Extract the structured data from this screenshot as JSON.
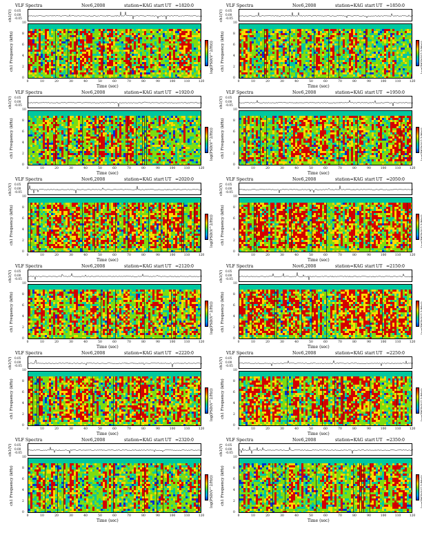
{
  "figure": {
    "title": "VLF Spectra",
    "date": "Nov6,2008",
    "station": "station=KAG",
    "start_label": "start",
    "ut_label": "UT",
    "ch_axis_label": "ch1(V)",
    "freq_axis_label": "ch1 Frequency (kHz)",
    "time_axis_label": "Time (sec)",
    "colorbar_label": "log(PSD(V^2/Hz))",
    "colors": {
      "high": "#d40000",
      "mid_high": "#ffd800",
      "mid": "#7ddc10",
      "mid_low": "#00c8a0",
      "low": "#0030d0",
      "background": "#ffffff"
    }
  },
  "chart_data": [
    {
      "type": "heatmap",
      "panel": 1,
      "start_time": "=1820:0",
      "x_ticks": [
        0,
        10,
        20,
        30,
        40,
        50,
        60,
        70,
        80,
        90,
        100,
        110,
        120
      ],
      "y_ticks": [
        0,
        2,
        4,
        6,
        8,
        10
      ],
      "ch_ticks": [
        "-0.05",
        "0.00",
        "0.05"
      ],
      "xlim": [
        0,
        120
      ],
      "ylim": [
        0,
        10
      ],
      "intensity": 0.45
    },
    {
      "type": "heatmap",
      "panel": 2,
      "start_time": "=1850:0",
      "x_ticks": [
        0,
        10,
        20,
        30,
        40,
        50,
        60,
        70,
        80,
        90,
        100,
        110,
        120
      ],
      "y_ticks": [
        0,
        2,
        4,
        6,
        8,
        10
      ],
      "ch_ticks": [
        "-0.05",
        "0.00",
        "0.05"
      ],
      "xlim": [
        0,
        120
      ],
      "ylim": [
        0,
        10
      ],
      "intensity": 0.4
    },
    {
      "type": "heatmap",
      "panel": 3,
      "start_time": "=1920:0",
      "x_ticks": [
        0,
        10,
        20,
        30,
        40,
        50,
        60,
        70,
        80,
        90,
        100,
        110,
        120
      ],
      "y_ticks": [
        0,
        2,
        4,
        6,
        8,
        10
      ],
      "ch_ticks": [
        "-0.05",
        "0.00",
        "0.05"
      ],
      "xlim": [
        0,
        120
      ],
      "ylim": [
        0,
        10
      ],
      "intensity": 0.3
    },
    {
      "type": "heatmap",
      "panel": 4,
      "start_time": "=1950:0",
      "x_ticks": [
        0,
        10,
        20,
        30,
        40,
        50,
        60,
        70,
        80,
        90,
        100,
        110,
        120
      ],
      "y_ticks": [
        0,
        2,
        4,
        6,
        8,
        10
      ],
      "ch_ticks": [
        "-0.05",
        "0.00",
        "0.05"
      ],
      "xlim": [
        0,
        120
      ],
      "ylim": [
        0,
        10
      ],
      "intensity": 0.5
    },
    {
      "type": "heatmap",
      "panel": 5,
      "start_time": "=2020:0",
      "x_ticks": [
        0,
        10,
        20,
        30,
        40,
        50,
        60,
        70,
        80,
        90,
        100,
        110,
        120
      ],
      "y_ticks": [
        0,
        2,
        4,
        6,
        8,
        10
      ],
      "ch_ticks": [
        "-0.05",
        "0.00",
        "0.05"
      ],
      "xlim": [
        0,
        120
      ],
      "ylim": [
        0,
        10
      ],
      "intensity": 0.6
    },
    {
      "type": "heatmap",
      "panel": 6,
      "start_time": "=2050:0",
      "x_ticks": [
        0,
        10,
        20,
        30,
        40,
        50,
        60,
        70,
        80,
        90,
        100,
        110,
        120
      ],
      "y_ticks": [
        0,
        2,
        4,
        6,
        8,
        10
      ],
      "ch_ticks": [
        "-0.05",
        "0.00",
        "0.05"
      ],
      "xlim": [
        0,
        120
      ],
      "ylim": [
        0,
        10
      ],
      "intensity": 0.65
    },
    {
      "type": "heatmap",
      "panel": 7,
      "start_time": "=2120:0",
      "x_ticks": [
        0,
        10,
        20,
        30,
        40,
        50,
        60,
        70,
        80,
        90,
        100,
        110,
        120
      ],
      "y_ticks": [
        0,
        2,
        4,
        6,
        8,
        10
      ],
      "ch_ticks": [
        "-0.05",
        "0.00",
        "0.05"
      ],
      "xlim": [
        0,
        120
      ],
      "ylim": [
        0,
        10
      ],
      "intensity": 0.8
    },
    {
      "type": "heatmap",
      "panel": 8,
      "start_time": "=2150:0",
      "x_ticks": [
        0,
        10,
        20,
        30,
        40,
        50,
        60,
        70,
        80,
        90,
        100,
        110,
        120
      ],
      "y_ticks": [
        0,
        2,
        4,
        6,
        8,
        10
      ],
      "ch_ticks": [
        "-0.05",
        "0.00",
        "0.05"
      ],
      "xlim": [
        0,
        120
      ],
      "ylim": [
        0,
        10
      ],
      "intensity": 0.75
    },
    {
      "type": "heatmap",
      "panel": 9,
      "start_time": "=2220:0",
      "x_ticks": [
        0,
        10,
        20,
        30,
        40,
        50,
        60,
        70,
        80,
        90,
        100,
        110,
        120
      ],
      "y_ticks": [
        0,
        2,
        4,
        6,
        8,
        10
      ],
      "ch_ticks": [
        "-0.05",
        "0.00",
        "0.05"
      ],
      "xlim": [
        0,
        120
      ],
      "ylim": [
        0,
        10
      ],
      "intensity": 0.6
    },
    {
      "type": "heatmap",
      "panel": 10,
      "start_time": "=2250:0",
      "x_ticks": [
        0,
        10,
        20,
        30,
        40,
        50,
        60,
        70,
        80,
        90,
        100,
        110,
        120
      ],
      "y_ticks": [
        0,
        2,
        4,
        6,
        8,
        10
      ],
      "ch_ticks": [
        "-0.05",
        "0.00",
        "0.05"
      ],
      "xlim": [
        0,
        120
      ],
      "ylim": [
        0,
        10
      ],
      "intensity": 0.6
    },
    {
      "type": "heatmap",
      "panel": 11,
      "start_time": "=2320:0",
      "x_ticks": [
        0,
        10,
        20,
        30,
        40,
        50,
        60,
        70,
        80,
        90,
        100,
        110,
        120
      ],
      "y_ticks": [
        0,
        2,
        4,
        6,
        8,
        10
      ],
      "ch_ticks": [
        "-0.05",
        "0.00",
        "0.05"
      ],
      "xlim": [
        0,
        120
      ],
      "ylim": [
        0,
        10
      ],
      "intensity": 0.4
    },
    {
      "type": "heatmap",
      "panel": 12,
      "start_time": "=2350:0",
      "x_ticks": [
        0,
        10,
        20,
        30,
        40,
        50,
        60,
        70,
        80,
        90,
        100,
        110,
        120
      ],
      "y_ticks": [
        0,
        2,
        4,
        6,
        8,
        10
      ],
      "ch_ticks": [
        "-0.05",
        "0.00",
        "0.05"
      ],
      "xlim": [
        0,
        120
      ],
      "ylim": [
        0,
        10
      ],
      "intensity": 0.45
    }
  ]
}
